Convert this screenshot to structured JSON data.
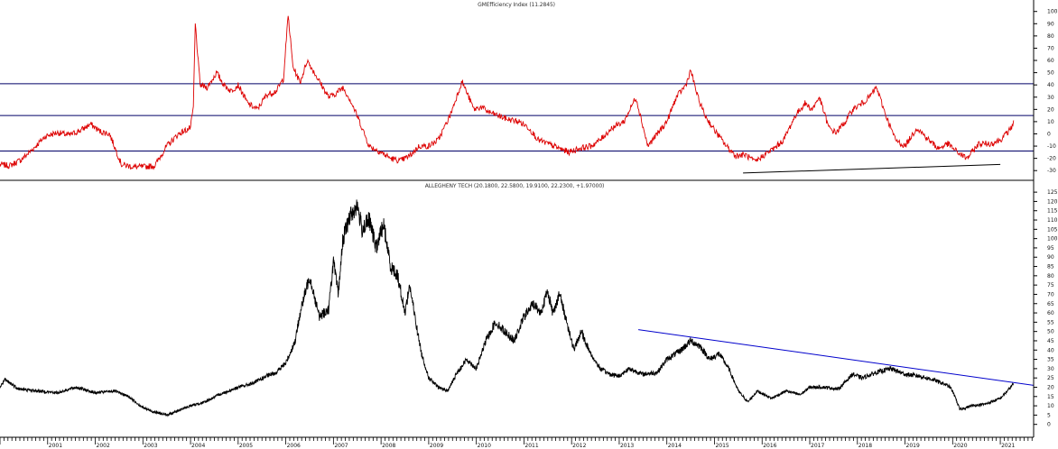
{
  "chart_data": [
    {
      "type": "line",
      "title": "GMEfficiency Index (11.2845)",
      "yticks": [
        -30,
        -20,
        -10,
        0,
        10,
        20,
        30,
        40,
        50,
        60,
        70,
        80,
        90,
        100
      ],
      "ylim": [
        -35,
        102
      ],
      "reference_lines": [
        -14,
        15,
        41
      ],
      "series": [
        {
          "color": "#dd0000",
          "x": [
            2000.0,
            2000.2,
            2000.45,
            2000.7,
            2000.95,
            2001.2,
            2001.45,
            2001.7,
            2001.9,
            2002.1,
            2002.3,
            2002.55,
            2002.8,
            2003.0,
            2003.25,
            2003.5,
            2003.75,
            2003.9,
            2004.0,
            2004.06,
            2004.1,
            2004.2,
            2004.35,
            2004.55,
            2004.7,
            2004.85,
            2005.0,
            2005.2,
            2005.4,
            2005.6,
            2005.8,
            2005.95,
            2006.05,
            2006.15,
            2006.3,
            2006.45,
            2006.6,
            2006.75,
            2006.9,
            2007.05,
            2007.2,
            2007.35,
            2007.55,
            2007.75,
            2008.0,
            2008.2,
            2008.4,
            2008.6,
            2008.8,
            2009.0,
            2009.2,
            2009.45,
            2009.7,
            2009.95,
            2010.1,
            2010.25,
            2010.45,
            2010.65,
            2010.9,
            2011.1,
            2011.3,
            2011.5,
            2011.75,
            2011.95,
            2012.15,
            2012.4,
            2012.6,
            2012.85,
            2013.1,
            2013.35,
            2013.6,
            2013.8,
            2014.0,
            2014.2,
            2014.4,
            2014.5,
            2014.65,
            2014.8,
            2015.0,
            2015.25,
            2015.45,
            2015.65,
            2015.85,
            2016.05,
            2016.25,
            2016.45,
            2016.7,
            2016.9,
            2017.05,
            2017.2,
            2017.4,
            2017.55,
            2017.75,
            2017.9,
            2018.1,
            2018.25,
            2018.4,
            2018.6,
            2018.8,
            2019.0,
            2019.25,
            2019.5,
            2019.7,
            2019.9,
            2020.1,
            2020.3,
            2020.55,
            2020.8,
            2021.0,
            2021.15,
            2021.25,
            2021.28
          ],
          "y": [
            -25,
            -26,
            -21,
            -12,
            -2,
            1,
            -1,
            3,
            8,
            2,
            0,
            -25,
            -27,
            -27,
            -26,
            -10,
            0,
            3,
            5,
            22,
            90,
            40,
            38,
            50,
            40,
            35,
            40,
            25,
            20,
            32,
            35,
            45,
            97,
            55,
            42,
            60,
            50,
            40,
            30,
            33,
            38,
            28,
            10,
            -10,
            -15,
            -20,
            -22,
            -18,
            -10,
            -10,
            -5,
            15,
            43,
            20,
            22,
            18,
            15,
            12,
            10,
            5,
            -5,
            -8,
            -12,
            -15,
            -12,
            -10,
            -5,
            5,
            10,
            30,
            -10,
            0,
            10,
            30,
            40,
            52,
            30,
            15,
            3,
            -10,
            -18,
            -17,
            -23,
            -17,
            -12,
            -5,
            15,
            25,
            20,
            30,
            5,
            1,
            10,
            20,
            25,
            30,
            38,
            15,
            -5,
            -10,
            5,
            -5,
            -12,
            -8,
            -15,
            -20,
            -8,
            -8,
            -5,
            1,
            6,
            11
          ]
        },
        {
          "color": "#000000",
          "x": [
            2015.6,
            2021.0
          ],
          "y": [
            -32,
            -25
          ]
        }
      ]
    },
    {
      "type": "line",
      "title": "ALLEGHENY TECH (20.1800, 22.5800, 19.9100, 22.2300, +1.97000)",
      "yticks": [
        0,
        5,
        10,
        15,
        20,
        25,
        30,
        35,
        40,
        45,
        50,
        55,
        60,
        65,
        70,
        75,
        80,
        85,
        90,
        95,
        100,
        105,
        110,
        115,
        120,
        125
      ],
      "ylim": [
        -5,
        127
      ],
      "x_tick_labels": [
        "2001",
        "2002",
        "2003",
        "2004",
        "2005",
        "2006",
        "2007",
        "2008",
        "2009",
        "2010",
        "2011",
        "2012",
        "2013",
        "2014",
        "2015",
        "2016",
        "2017",
        "2018",
        "2019",
        "2020",
        "2021"
      ],
      "series": [
        {
          "color": "#000000",
          "x": [
            2000.0,
            2000.1,
            2000.4,
            2000.8,
            2001.2,
            2001.6,
            2002.0,
            2002.4,
            2002.7,
            2003.0,
            2003.2,
            2003.5,
            2003.8,
            2004.0,
            2004.3,
            2004.6,
            2005.0,
            2005.3,
            2005.6,
            2005.8,
            2006.0,
            2006.2,
            2006.3,
            2006.5,
            2006.7,
            2006.9,
            2007.0,
            2007.1,
            2007.2,
            2007.35,
            2007.5,
            2007.6,
            2007.75,
            2007.9,
            2008.05,
            2008.2,
            2008.35,
            2008.5,
            2008.6,
            2008.75,
            2008.85,
            2009.0,
            2009.2,
            2009.4,
            2009.6,
            2009.8,
            2010.0,
            2010.2,
            2010.4,
            2010.6,
            2010.8,
            2011.0,
            2011.2,
            2011.35,
            2011.5,
            2011.6,
            2011.75,
            2011.9,
            2012.05,
            2012.2,
            2012.4,
            2012.6,
            2012.8,
            2013.0,
            2013.2,
            2013.5,
            2013.8,
            2014.0,
            2014.3,
            2014.5,
            2014.7,
            2014.9,
            2015.1,
            2015.3,
            2015.5,
            2015.7,
            2015.9,
            2016.2,
            2016.5,
            2016.8,
            2017.0,
            2017.3,
            2017.6,
            2017.9,
            2018.1,
            2018.4,
            2018.7,
            2019.0,
            2019.3,
            2019.6,
            2019.8,
            2019.95,
            2020.05,
            2020.15,
            2020.4,
            2020.7,
            2021.0,
            2021.15,
            2021.25,
            2021.28
          ],
          "y": [
            20,
            24,
            19,
            18,
            17,
            20,
            17,
            18,
            15,
            9,
            7,
            5,
            8,
            10,
            12,
            16,
            20,
            22,
            26,
            28,
            33,
            45,
            60,
            80,
            58,
            62,
            88,
            70,
            100,
            112,
            118,
            105,
            110,
            95,
            108,
            85,
            80,
            60,
            75,
            52,
            38,
            25,
            20,
            18,
            28,
            35,
            30,
            45,
            55,
            50,
            45,
            58,
            65,
            60,
            72,
            60,
            70,
            55,
            40,
            50,
            38,
            30,
            27,
            26,
            30,
            27,
            28,
            35,
            40,
            45,
            42,
            35,
            38,
            30,
            18,
            12,
            18,
            14,
            18,
            16,
            20,
            20,
            19,
            27,
            25,
            28,
            30,
            27,
            26,
            24,
            22,
            20,
            15,
            8,
            10,
            11,
            14,
            18,
            21,
            22
          ]
        },
        {
          "color": "#0000cc",
          "x": [
            2013.4,
            2021.7
          ],
          "y": [
            51,
            21
          ]
        }
      ]
    }
  ]
}
